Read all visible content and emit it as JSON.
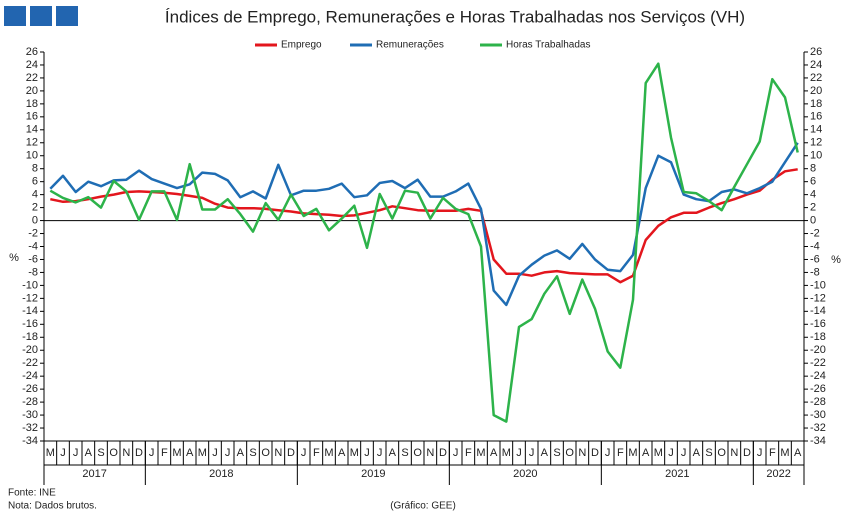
{
  "chart_data": {
    "type": "line",
    "title": "Índices de Emprego, Remunerações e Horas Trabalhadas nos Serviços (VH)",
    "y_label": "%",
    "y2_label": "%",
    "categories": [
      "M",
      "J",
      "J",
      "A",
      "S",
      "O",
      "N",
      "D",
      "J",
      "F",
      "M",
      "A",
      "M",
      "J",
      "J",
      "A",
      "S",
      "O",
      "N",
      "D",
      "J",
      "F",
      "M",
      "A",
      "M",
      "J",
      "J",
      "A",
      "S",
      "O",
      "N",
      "D",
      "J",
      "F",
      "M",
      "A",
      "M",
      "J",
      "J",
      "A",
      "S",
      "O",
      "N",
      "D",
      "J",
      "F",
      "M",
      "A",
      "M",
      "J",
      "J",
      "A",
      "S",
      "O",
      "N",
      "D",
      "J",
      "F",
      "M",
      "A"
    ],
    "years": [
      "2017",
      "2018",
      "2019",
      "2020",
      "2021",
      "2022"
    ],
    "series": [
      {
        "name": "Emprego",
        "color": "#e3161d",
        "values": [
          3.3,
          2.9,
          3.0,
          3.3,
          3.7,
          4.0,
          4.4,
          4.5,
          4.4,
          4.3,
          4.1,
          3.8,
          3.5,
          2.6,
          2.0,
          1.9,
          1.9,
          1.8,
          1.6,
          1.4,
          1.1,
          1.0,
          0.9,
          0.7,
          0.8,
          1.2,
          1.6,
          2.2,
          1.9,
          1.6,
          1.5,
          1.5,
          1.5,
          1.8,
          1.5,
          -6.0,
          -8.2,
          -8.2,
          -8.5,
          -8.0,
          -7.8,
          -8.1,
          -8.2,
          -8.3,
          -8.3,
          -9.5,
          -8.5,
          -3.0,
          -0.8,
          0.5,
          1.2,
          1.2,
          2.0,
          2.7,
          3.3,
          4.0,
          4.6,
          6.3,
          7.6,
          7.9
        ]
      },
      {
        "name": "Remunerações",
        "color": "#1f6db4",
        "values": [
          4.9,
          6.9,
          4.4,
          6.0,
          5.3,
          6.2,
          6.3,
          7.7,
          6.4,
          5.7,
          5.0,
          5.6,
          7.4,
          7.2,
          6.2,
          3.6,
          4.5,
          3.4,
          8.6,
          3.9,
          4.6,
          4.6,
          4.9,
          5.7,
          3.6,
          3.9,
          5.8,
          6.1,
          5.0,
          6.3,
          3.7,
          3.7,
          4.5,
          5.7,
          1.8,
          -10.8,
          -13.0,
          -8.5,
          -6.8,
          -5.4,
          -4.6,
          -5.9,
          -3.6,
          -6.0,
          -7.6,
          -7.8,
          -5.3,
          5.0,
          10.0,
          9.0,
          4.0,
          3.3,
          3.0,
          4.4,
          4.8,
          4.2,
          5.0,
          6.0,
          9.0,
          12.0
        ]
      },
      {
        "name": "Horas Trabalhadas",
        "color": "#2db34a",
        "values": [
          4.6,
          3.5,
          2.8,
          3.6,
          2.0,
          6.1,
          4.5,
          0.1,
          4.5,
          4.5,
          0.1,
          8.7,
          1.7,
          1.7,
          3.3,
          1.0,
          -1.7,
          2.7,
          0.1,
          4.0,
          0.7,
          1.8,
          -1.5,
          0.3,
          2.3,
          -4.2,
          4.1,
          0.3,
          4.6,
          4.3,
          0.3,
          3.5,
          1.8,
          1.0,
          -4.0,
          -30.0,
          -31.0,
          -16.4,
          -15.2,
          -11.3,
          -8.6,
          -14.4,
          -9.1,
          -13.6,
          -20.2,
          -22.7,
          -12.2,
          21.2,
          24.2,
          12.8,
          4.4,
          4.2,
          3.0,
          1.6,
          5.2,
          8.7,
          12.2,
          21.8,
          19.0,
          10.5
        ]
      }
    ],
    "ylim": [
      -34,
      26
    ],
    "yticks": [
      26,
      24,
      22,
      20,
      18,
      16,
      14,
      12,
      10,
      8,
      6,
      4,
      2,
      0,
      -2,
      -4,
      -6,
      -8,
      -10,
      -12,
      -14,
      -16,
      -18,
      -20,
      -22,
      -24,
      -26,
      -28,
      -30,
      -32,
      -34
    ],
    "y2lim": [
      -34,
      26
    ],
    "y2ticks": [
      26,
      24,
      22,
      20,
      18,
      16,
      14,
      12,
      10,
      8,
      6,
      4,
      2,
      0,
      -2,
      -4,
      -6,
      -8,
      -10,
      -12,
      -14,
      -16,
      -18,
      -20,
      -22,
      -24,
      -26,
      -28,
      -30,
      -32,
      -34
    ],
    "source": "Fonte: INE",
    "note": "Nota: Dados brutos.",
    "credit": "(Gráfico: GEE)"
  }
}
